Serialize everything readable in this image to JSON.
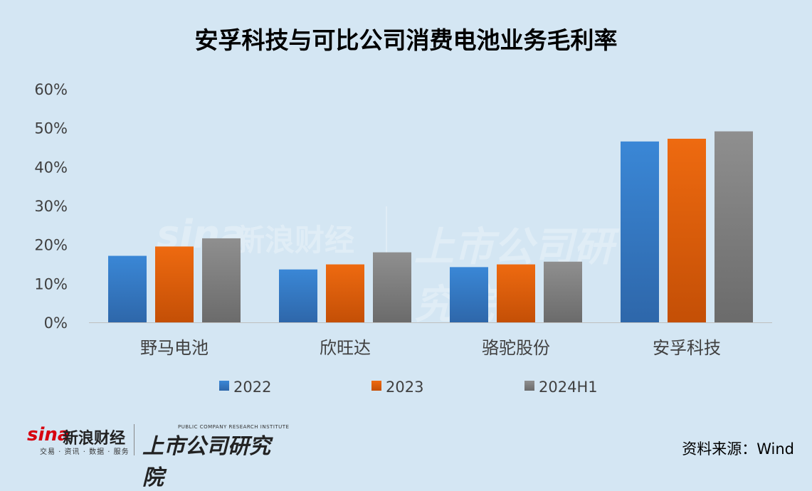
{
  "colors": {
    "background": "#d4e6f3",
    "series": [
      "#3a87d6",
      "#ee6a10",
      "#8f8f8f"
    ]
  },
  "footer": {
    "logo_sina": "sina",
    "logo_cj": "新浪财经",
    "logo_sub": "交易 · 资讯 · 数据 · 服务",
    "logo_ssgs": "上市公司研究院",
    "logo_ssgs_en": "PUBLIC COMPANY RESEARCH INSTITUTE",
    "source": "资料来源：Wind"
  },
  "chart_data": {
    "type": "bar",
    "title": "安孚科技与可比公司消费电池业务毛利率",
    "categories": [
      "野马电池",
      "欣旺达",
      "骆驼股份",
      "安孚科技"
    ],
    "series": [
      {
        "name": "2022",
        "values": [
          17.1,
          13.6,
          14.2,
          46.5
        ]
      },
      {
        "name": "2023",
        "values": [
          19.5,
          14.9,
          14.9,
          47.2
        ]
      },
      {
        "name": "2024H1",
        "values": [
          21.6,
          18.0,
          15.6,
          49.1
        ]
      }
    ],
    "ylim": [
      0,
      60
    ],
    "yticks": [
      "0%",
      "10%",
      "20%",
      "30%",
      "40%",
      "50%",
      "60%"
    ],
    "grid": false,
    "legend_position": "bottom"
  }
}
